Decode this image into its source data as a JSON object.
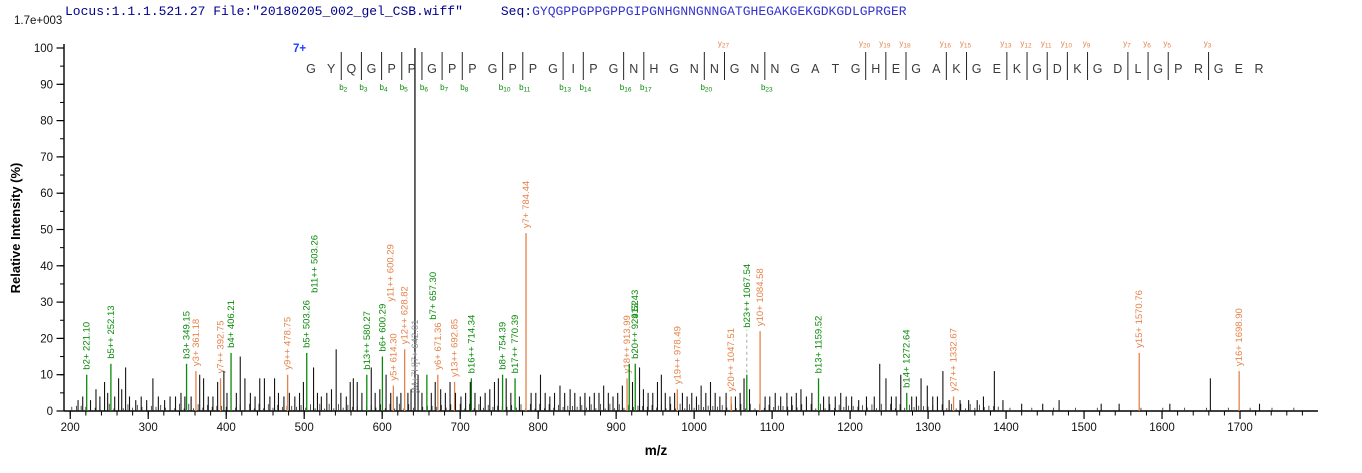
{
  "header": {
    "locus_file": "Locus:1.1.1.521.27 File:\"20180205_002_gel_CSB.wiff\"",
    "seq_label": "Seq:",
    "sequence": "GYQGPPGPPGPPGIPGNHGNNGNNGATGHEGAKGEKGDKGDLGPRGER",
    "intensity_scale": "1.7e+003"
  },
  "chart_data": {
    "type": "bar",
    "subtype": "ms2-fragment-spectrum",
    "title": "",
    "xlabel": "m/z",
    "ylabel": "Relative  Intensity  (%)",
    "xlim": [
      192,
      1800
    ],
    "ylim": [
      0,
      100
    ],
    "x_ticks": {
      "from": 200,
      "to": 1700,
      "step": 100,
      "minor_step": 20,
      "minor_to": 1780
    },
    "y_ticks": {
      "from": 0,
      "to": 100,
      "step": 10,
      "minor_step": 5
    },
    "grid": false,
    "noise_floor": {
      "present": true,
      "max_h": 2
    },
    "colors": {
      "b_ion": "#0a8a0a",
      "y_ion": "#e6824a",
      "peak_black": "#141414",
      "precursor_label": "#949494",
      "leader_gray": "#aaaaaa",
      "axis": "#000000",
      "charge_blue": "#1f3fff",
      "residue": "#3a3a3a",
      "header_navy": "#00008b",
      "sequence_blue": "#3535cd"
    },
    "ladder": {
      "charge": "7+",
      "residues": "GYQGPPGPPGPPGIPGNHGNNGNNGATGHEGAKGEKGDKGDLGPRGER",
      "b_ions": [
        2,
        3,
        4,
        5,
        6,
        7,
        8,
        10,
        11,
        13,
        14,
        16,
        17,
        20,
        23
      ],
      "y_ions": [
        [
          27,
          22
        ],
        [
          20,
          29
        ],
        [
          19,
          30
        ],
        [
          18,
          31
        ],
        [
          16,
          33
        ],
        [
          15,
          34
        ],
        [
          13,
          36
        ],
        [
          12,
          37
        ],
        [
          11,
          38
        ],
        [
          10,
          39
        ],
        [
          9,
          40
        ],
        [
          7,
          42
        ],
        [
          6,
          43
        ],
        [
          5,
          44
        ],
        [
          3,
          46
        ]
      ]
    },
    "peaks": [
      [
        221.1,
        10,
        "b",
        "b2+ 221.10"
      ],
      [
        252.13,
        13,
        "b",
        "b5++ 252.13"
      ],
      [
        349.15,
        13,
        "b",
        "b3+ 349.15"
      ],
      [
        361.18,
        11,
        "y",
        "y3+ 361.18"
      ],
      [
        392.75,
        9,
        "y",
        "y7++ 392.75"
      ],
      [
        406.21,
        16,
        "b",
        "b4+ 406.21"
      ],
      [
        478.75,
        10,
        "y",
        "y9++ 478.75"
      ],
      [
        503.26,
        16,
        "b",
        "b5+ 503.26"
      ],
      [
        503.26,
        16,
        "b",
        "b11++ 503.26",
        {
          "noline": 1,
          "dx": 8,
          "raise": 55
        }
      ],
      [
        580.27,
        10,
        "b",
        "b13++ 580.27"
      ],
      [
        600.29,
        15,
        "b",
        "b6+ 600.29"
      ],
      [
        600.29,
        15,
        "y",
        "y11++ 600.29",
        {
          "noline": 1,
          "dx": 8,
          "raise": 50
        }
      ],
      [
        614.3,
        7,
        "y",
        "y5+ 614.30"
      ],
      [
        628.82,
        17,
        "y",
        "y12++ 628.82"
      ],
      [
        642.01,
        100,
        "k",
        "[M+7H]7+ 642.01",
        {
          "base": 1,
          "gray": 1
        }
      ],
      [
        657.3,
        10,
        "b",
        "b7+ 657.30",
        {
          "raise": 50,
          "dx": 6
        }
      ],
      [
        671.36,
        10,
        "y",
        "y6+ 671.36"
      ],
      [
        692.85,
        8,
        "y",
        "y13++ 692.85"
      ],
      [
        714.34,
        9,
        "b",
        "b16++ 714.34"
      ],
      [
        754.39,
        10,
        "b",
        "b8+ 754.39"
      ],
      [
        770.39,
        9,
        "b",
        "b17++ 770.39"
      ],
      [
        784.44,
        49,
        "y",
        "y7+ 784.44"
      ],
      [
        913.99,
        9,
        "y",
        "y18++ 913.99"
      ],
      [
        916.8,
        13,
        "b",
        "913.43",
        {
          "raise": 40,
          "dx": 6
        }
      ],
      [
        924.52,
        13,
        "b",
        "b20++ 924.52"
      ],
      [
        978.49,
        6,
        "y",
        "y19++ 978.49"
      ],
      [
        1047.51,
        4,
        "y",
        "y20++ 1047.51"
      ],
      [
        1067.54,
        10,
        "b",
        "b23++ 1067.54",
        {
          "leader": 1,
          "raise": 42
        }
      ],
      [
        1084.58,
        22,
        "y",
        "y10+ 1084.58"
      ],
      [
        1159.52,
        9,
        "b",
        "b13+ 1159.52"
      ],
      [
        1272.64,
        5,
        "b",
        "b14+ 1272.64"
      ],
      [
        1332.67,
        4,
        "y",
        "y27++ 1332.67"
      ],
      [
        1570.76,
        16,
        "y",
        "y15+ 1570.76"
      ],
      [
        1698.9,
        11,
        "y",
        "y16+ 1698.90"
      ],
      [
        210,
        3
      ],
      [
        216,
        4
      ],
      [
        226,
        3
      ],
      [
        233,
        6
      ],
      [
        238,
        4
      ],
      [
        244,
        8
      ],
      [
        248,
        5
      ],
      [
        257,
        4
      ],
      [
        262,
        9
      ],
      [
        266,
        6
      ],
      [
        271,
        12
      ],
      [
        276,
        4
      ],
      [
        284,
        3
      ],
      [
        291,
        4
      ],
      [
        298,
        3
      ],
      [
        306,
        9
      ],
      [
        313,
        4
      ],
      [
        321,
        3
      ],
      [
        328,
        4
      ],
      [
        335,
        4
      ],
      [
        342,
        5
      ],
      [
        347,
        4
      ],
      [
        355,
        4
      ],
      [
        366,
        10
      ],
      [
        371,
        9
      ],
      [
        377,
        4
      ],
      [
        383,
        4
      ],
      [
        389,
        8
      ],
      [
        397,
        11
      ],
      [
        401,
        5
      ],
      [
        413,
        5
      ],
      [
        418,
        15
      ],
      [
        424,
        9
      ],
      [
        431,
        5
      ],
      [
        437,
        4
      ],
      [
        443,
        9
      ],
      [
        449,
        9
      ],
      [
        456,
        4
      ],
      [
        462,
        9
      ],
      [
        467,
        5
      ],
      [
        474,
        4
      ],
      [
        481,
        5
      ],
      [
        488,
        4
      ],
      [
        494,
        5
      ],
      [
        499,
        8
      ],
      [
        512,
        12
      ],
      [
        517,
        5
      ],
      [
        522,
        4
      ],
      [
        529,
        5
      ],
      [
        535,
        6
      ],
      [
        541,
        17
      ],
      [
        547,
        5
      ],
      [
        554,
        4
      ],
      [
        559,
        8
      ],
      [
        563,
        9
      ],
      [
        568,
        8
      ],
      [
        574,
        5
      ],
      [
        586,
        12
      ],
      [
        591,
        5
      ],
      [
        597,
        6
      ],
      [
        605,
        10
      ],
      [
        611,
        5
      ],
      [
        619,
        4
      ],
      [
        624,
        5
      ],
      [
        633,
        5
      ],
      [
        637,
        6
      ],
      [
        646,
        10
      ],
      [
        651,
        5
      ],
      [
        663,
        5
      ],
      [
        668,
        8
      ],
      [
        675,
        6
      ],
      [
        681,
        5
      ],
      [
        687,
        8
      ],
      [
        694,
        5
      ],
      [
        701,
        4
      ],
      [
        707,
        5
      ],
      [
        713,
        8
      ],
      [
        719,
        5
      ],
      [
        726,
        4
      ],
      [
        732,
        5
      ],
      [
        738,
        6
      ],
      [
        744,
        8
      ],
      [
        749,
        9
      ],
      [
        759,
        9
      ],
      [
        765,
        5
      ],
      [
        776,
        4
      ],
      [
        791,
        5
      ],
      [
        797,
        5
      ],
      [
        803,
        10
      ],
      [
        809,
        5
      ],
      [
        815,
        4
      ],
      [
        821,
        5
      ],
      [
        828,
        7
      ],
      [
        834,
        5
      ],
      [
        841,
        6
      ],
      [
        847,
        5
      ],
      [
        854,
        4
      ],
      [
        860,
        5
      ],
      [
        866,
        4
      ],
      [
        872,
        5
      ],
      [
        878,
        5
      ],
      [
        884,
        7
      ],
      [
        890,
        5
      ],
      [
        896,
        4
      ],
      [
        902,
        5
      ],
      [
        908,
        7
      ],
      [
        921,
        8
      ],
      [
        930,
        12
      ],
      [
        935,
        6
      ],
      [
        941,
        5
      ],
      [
        947,
        5
      ],
      [
        953,
        8
      ],
      [
        958,
        10
      ],
      [
        963,
        5
      ],
      [
        969,
        4
      ],
      [
        975,
        5
      ],
      [
        985,
        5
      ],
      [
        991,
        4
      ],
      [
        997,
        5
      ],
      [
        1003,
        4
      ],
      [
        1009,
        7
      ],
      [
        1015,
        5
      ],
      [
        1021,
        8
      ],
      [
        1027,
        5
      ],
      [
        1033,
        4
      ],
      [
        1041,
        5
      ],
      [
        1053,
        4
      ],
      [
        1059,
        5
      ],
      [
        1064,
        9
      ],
      [
        1071,
        6
      ],
      [
        1091,
        4
      ],
      [
        1097,
        4
      ],
      [
        1104,
        5
      ],
      [
        1111,
        4
      ],
      [
        1119,
        5
      ],
      [
        1125,
        4
      ],
      [
        1131,
        5
      ],
      [
        1137,
        6
      ],
      [
        1144,
        4
      ],
      [
        1151,
        5
      ],
      [
        1166,
        4
      ],
      [
        1173,
        4
      ],
      [
        1181,
        4
      ],
      [
        1188,
        5
      ],
      [
        1195,
        4
      ],
      [
        1202,
        4
      ],
      [
        1211,
        3
      ],
      [
        1221,
        4
      ],
      [
        1231,
        4
      ],
      [
        1238,
        13
      ],
      [
        1246,
        9
      ],
      [
        1253,
        4
      ],
      [
        1259,
        4
      ],
      [
        1265,
        10
      ],
      [
        1279,
        4
      ],
      [
        1285,
        4
      ],
      [
        1291,
        9
      ],
      [
        1299,
        7
      ],
      [
        1306,
        4
      ],
      [
        1312,
        4
      ],
      [
        1319,
        11
      ],
      [
        1327,
        3
      ],
      [
        1341,
        3
      ],
      [
        1352,
        3
      ],
      [
        1363,
        3
      ],
      [
        1371,
        4
      ],
      [
        1385,
        11
      ],
      [
        1396,
        3
      ],
      [
        1420,
        2
      ],
      [
        1447,
        2
      ],
      [
        1468,
        3
      ],
      [
        1522,
        2
      ],
      [
        1545,
        2
      ],
      [
        1610,
        2
      ],
      [
        1662,
        9
      ],
      [
        1725,
        2
      ]
    ]
  }
}
